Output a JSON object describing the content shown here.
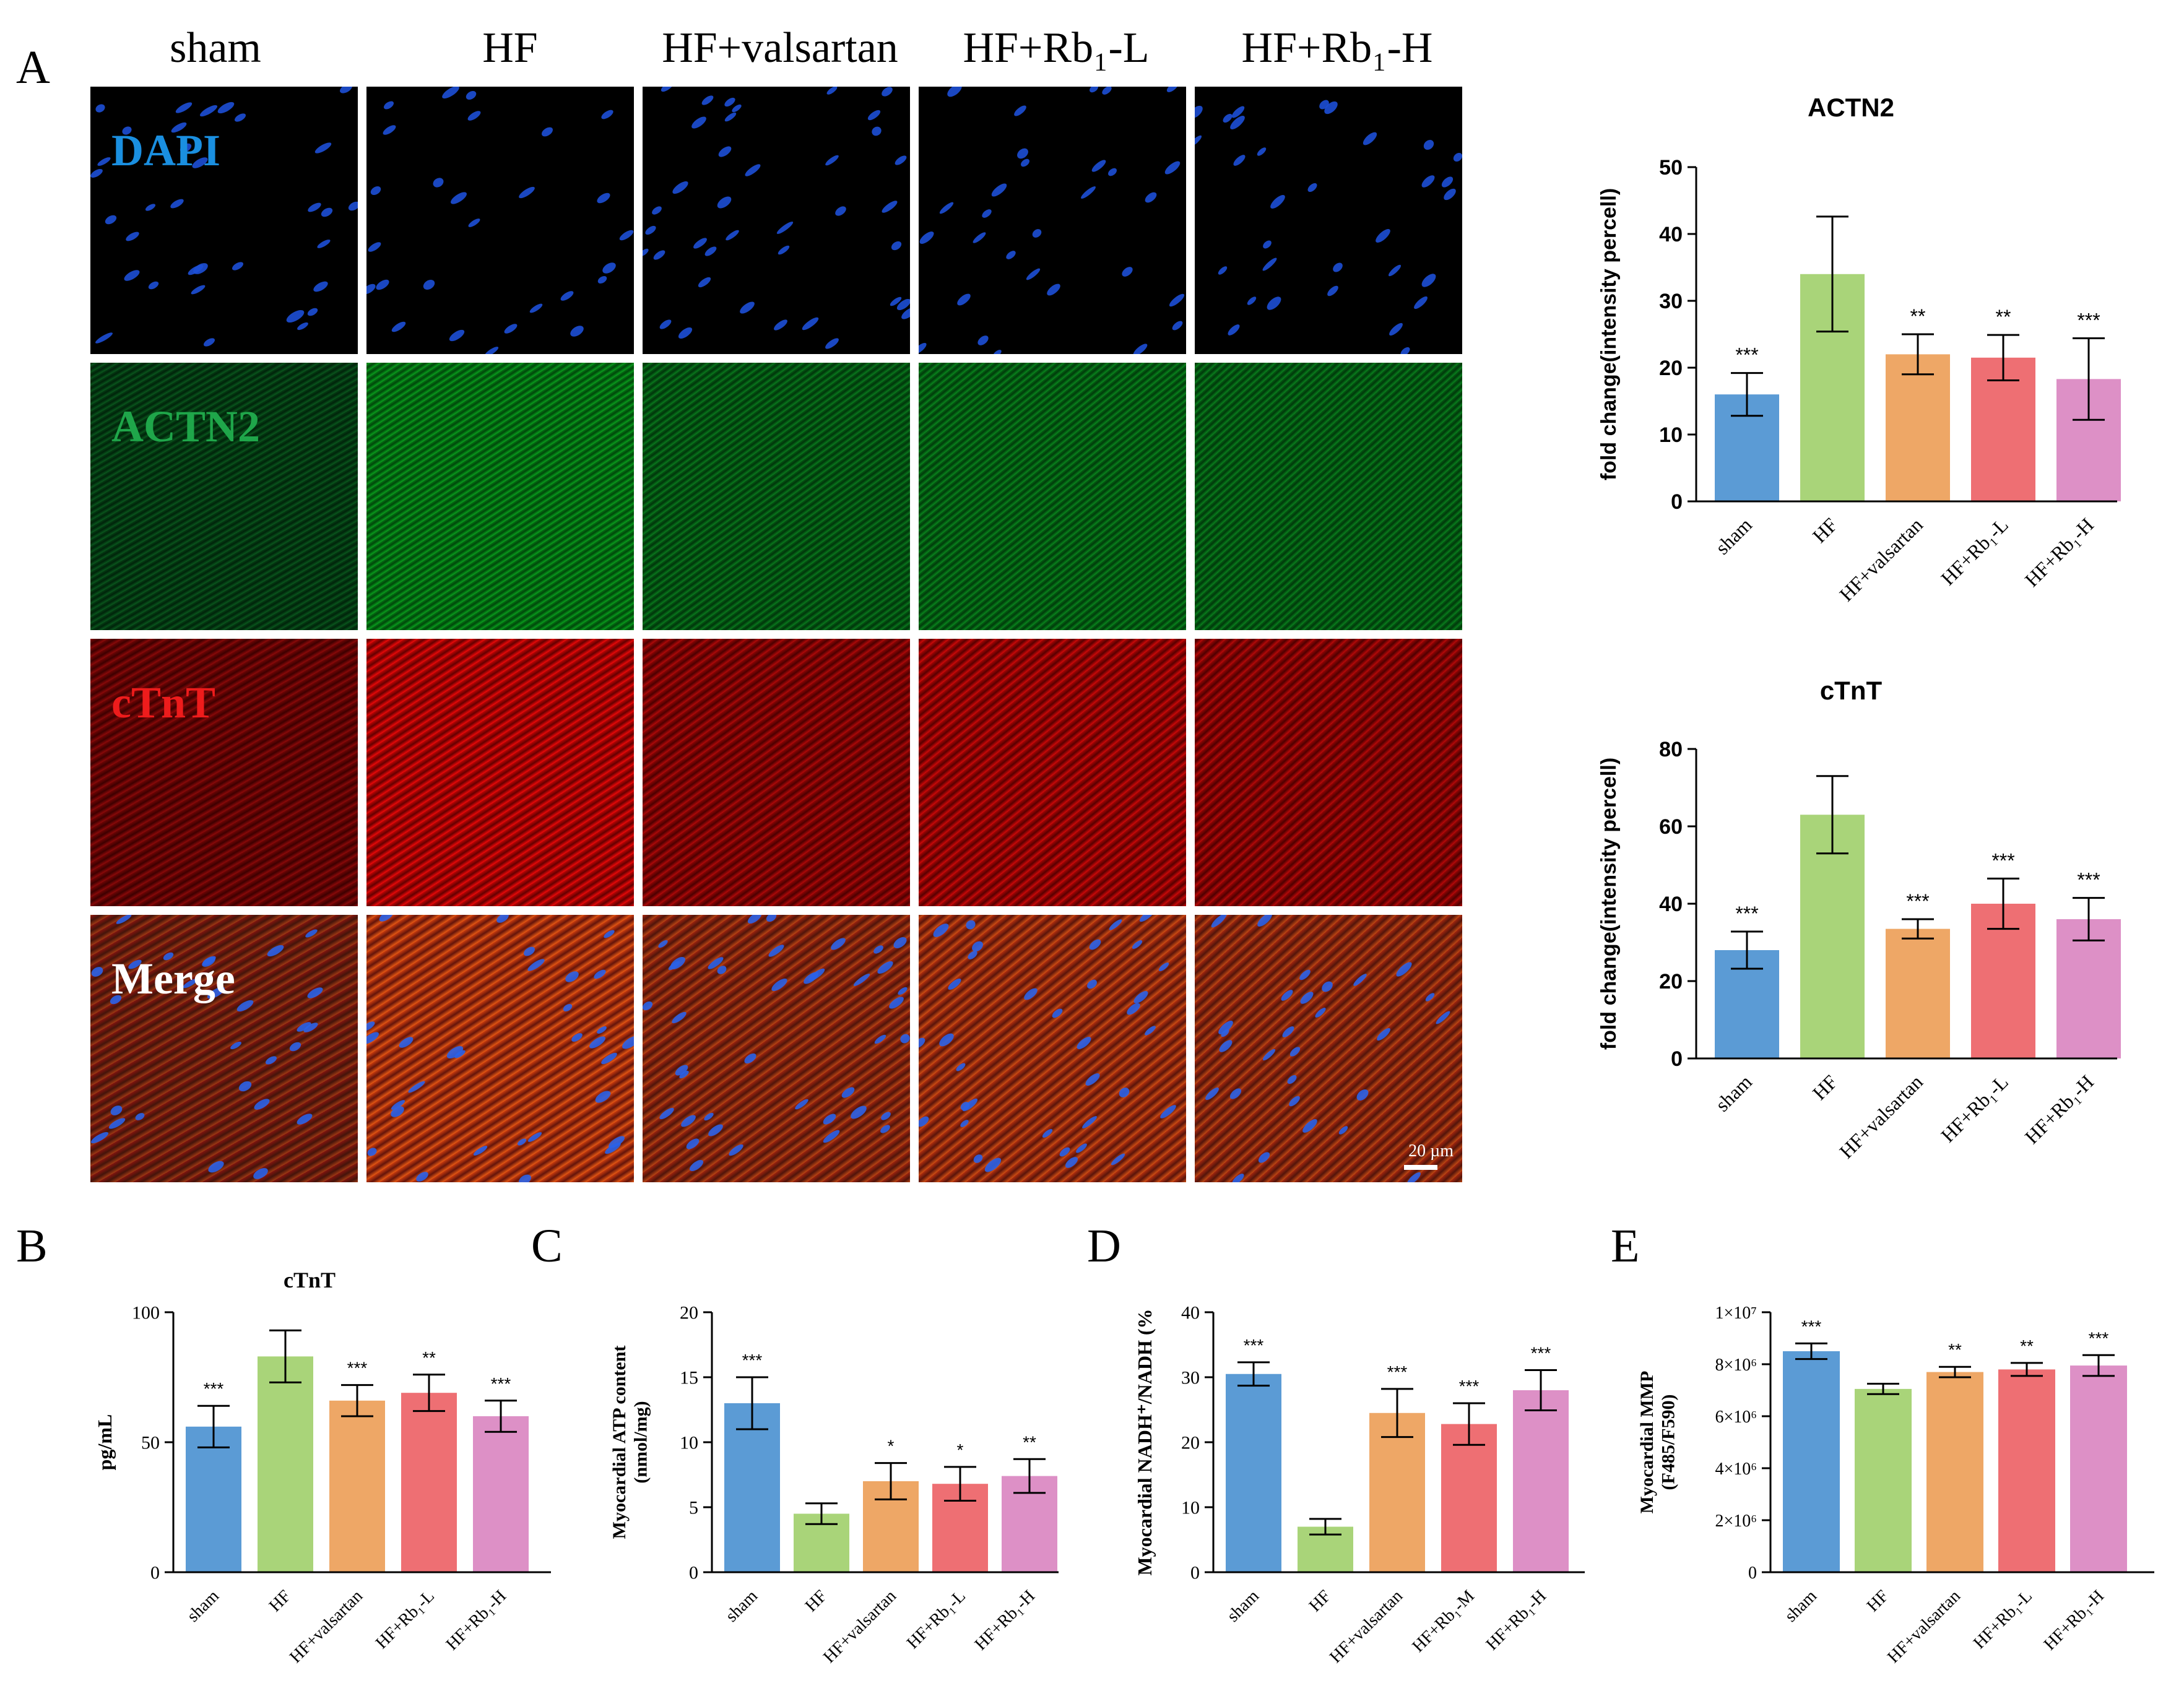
{
  "panel_labels": {
    "A": "A",
    "B": "B",
    "C": "C",
    "D": "D",
    "E": "E"
  },
  "micrograph": {
    "columns": [
      "sham",
      "HF",
      "HF+valsartan",
      "HF+Rb₁-L",
      "HF+Rb₁-H"
    ],
    "rows": [
      {
        "name": "DAPI",
        "color": "#1a8fe0"
      },
      {
        "name": "ACTN2",
        "color": "#1fa64a"
      },
      {
        "name": "cTnT",
        "color": "#ee1c1c"
      },
      {
        "name": "Merge",
        "color": "#ffffff"
      }
    ],
    "scale_bar": "20 µm"
  },
  "colors": {
    "sham": "#5b9bd5",
    "HF": "#a9d479",
    "valsartan": "#eea766",
    "RbL": "#ee6f73",
    "RbH": "#dd90c6"
  },
  "chart_data": [
    {
      "id": "actn2",
      "type": "bar",
      "title": "ACTN2",
      "ylabel": "fold change(intensity percell)",
      "ylim": [
        0,
        50
      ],
      "yticks": [
        0,
        10,
        20,
        30,
        40,
        50
      ],
      "ytick_labels": [
        "0",
        "10",
        "20",
        "30",
        "40",
        "50"
      ],
      "categories": [
        "sham",
        "HF",
        "HF+valsartan",
        "HF+Rb₁-L",
        "HF+Rb₁-H"
      ],
      "values": [
        16,
        34,
        22,
        21.5,
        18.3
      ],
      "errors": [
        3.2,
        8.6,
        3,
        3.4,
        6.1
      ],
      "significance": [
        "***",
        "",
        "**",
        "**",
        "***"
      ]
    },
    {
      "id": "ctnt_if",
      "type": "bar",
      "title": "cTnT",
      "ylabel": "fold change(intensity percell)",
      "ylim": [
        0,
        80
      ],
      "yticks": [
        0,
        20,
        40,
        60,
        80
      ],
      "ytick_labels": [
        "0",
        "20",
        "40",
        "60",
        "80"
      ],
      "categories": [
        "sham",
        "HF",
        "HF+valsartan",
        "HF+Rb₁-L",
        "HF+Rb₁-H"
      ],
      "values": [
        28,
        63,
        33.5,
        40,
        36
      ],
      "errors": [
        4.8,
        10,
        2.5,
        6.5,
        5.5
      ],
      "significance": [
        "***",
        "",
        "***",
        "***",
        "***"
      ]
    },
    {
      "id": "ctnt_serum",
      "type": "bar",
      "title": "cTnT",
      "ylabel": "pg/mL",
      "ylim": [
        0,
        100
      ],
      "yticks": [
        0,
        50,
        100
      ],
      "ytick_labels": [
        "0",
        "50",
        "100"
      ],
      "categories": [
        "sham",
        "HF",
        "HF+valsartan",
        "HF+Rb₁-L",
        "HF+Rb₁-H"
      ],
      "values": [
        56,
        83,
        66,
        69,
        60
      ],
      "errors": [
        8,
        10,
        6,
        7,
        6
      ],
      "significance": [
        "***",
        "",
        "***",
        "**",
        "***"
      ]
    },
    {
      "id": "atp",
      "type": "bar",
      "title": "",
      "ylabel": "Myocardial ATP content (nmol/mg)",
      "ylabel_lines": [
        "Myocardial ATP content",
        "(nmol/mg)"
      ],
      "ylim": [
        0,
        20
      ],
      "yticks": [
        0,
        5,
        10,
        15,
        20
      ],
      "ytick_labels": [
        "0",
        "5",
        "10",
        "15",
        "20"
      ],
      "categories": [
        "sham",
        "HF",
        "HF+valsartan",
        "HF+Rb₁-L",
        "HF+Rb₁-H"
      ],
      "values": [
        13,
        4.5,
        7,
        6.8,
        7.4
      ],
      "errors": [
        2,
        0.8,
        1.4,
        1.3,
        1.3
      ],
      "significance": [
        "***",
        "",
        "*",
        "*",
        "**"
      ]
    },
    {
      "id": "nadh",
      "type": "bar",
      "title": "",
      "ylabel": "Myocardial NADH⁺/NADH (%",
      "ylim": [
        0,
        40
      ],
      "yticks": [
        0,
        10,
        20,
        30,
        40
      ],
      "ytick_labels": [
        "0",
        "10",
        "20",
        "30",
        "40"
      ],
      "categories": [
        "sham",
        "HF",
        "HF+valsartan",
        "HF+Rb₁-M",
        "HF+Rb₁-H"
      ],
      "values": [
        30.5,
        7,
        24.5,
        22.8,
        28
      ],
      "errors": [
        1.8,
        1.2,
        3.7,
        3.2,
        3.1
      ],
      "significance": [
        "***",
        "",
        "***",
        "***",
        "***"
      ]
    },
    {
      "id": "mmp",
      "type": "bar",
      "title": "",
      "ylabel": "Myocardial MMP (F485/F590)",
      "ylabel_lines": [
        "Myocardial MMP",
        "(F485/F590)"
      ],
      "ylim": [
        0,
        10000000
      ],
      "yticks": [
        0,
        2000000,
        4000000,
        6000000,
        8000000,
        10000000
      ],
      "ytick_labels": [
        "0",
        "2×10⁶",
        "4×10⁶",
        "6×10⁶",
        "8×10⁶",
        "1×10⁷"
      ],
      "categories": [
        "sham",
        "HF",
        "HF+valsartan",
        "HF+Rb₁-L",
        "HF+Rb₁-H"
      ],
      "values": [
        8500000,
        7050000,
        7700000,
        7800000,
        7950000
      ],
      "errors": [
        300000,
        200000,
        200000,
        250000,
        400000
      ],
      "significance": [
        "***",
        "",
        "**",
        "**",
        "***"
      ]
    }
  ]
}
